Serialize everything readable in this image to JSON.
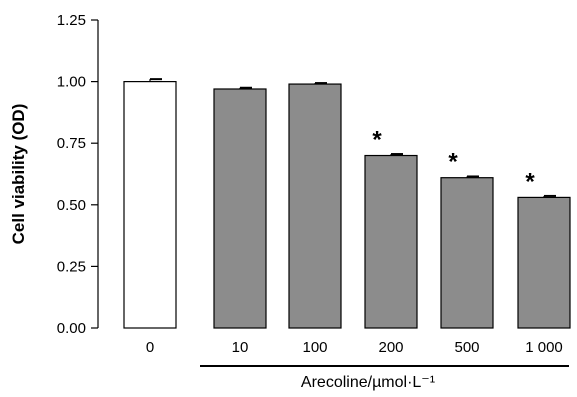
{
  "chart_data": {
    "type": "bar",
    "categories": [
      "0",
      "10",
      "100",
      "200",
      "500",
      "1 000"
    ],
    "values": [
      1.0,
      0.97,
      0.99,
      0.7,
      0.61,
      0.53
    ],
    "errors": [
      0.01,
      0.005,
      0.004,
      0.006,
      0.005,
      0.006
    ],
    "significance": [
      "",
      "",
      "",
      "*",
      "*",
      "*"
    ],
    "bar_colors": [
      "#ffffff",
      "#8c8c8c",
      "#8c8c8c",
      "#8c8c8c",
      "#8c8c8c",
      "#8c8c8c"
    ],
    "ylabel": "Cell viability (OD)",
    "xlabel": "Arecoline/µmol·L⁻¹",
    "ylim": [
      0,
      1.25
    ],
    "yticks": [
      "0.00",
      "0.25",
      "0.50",
      "0.75",
      "1.00",
      "1.25"
    ],
    "grid": false,
    "legend": "none"
  }
}
